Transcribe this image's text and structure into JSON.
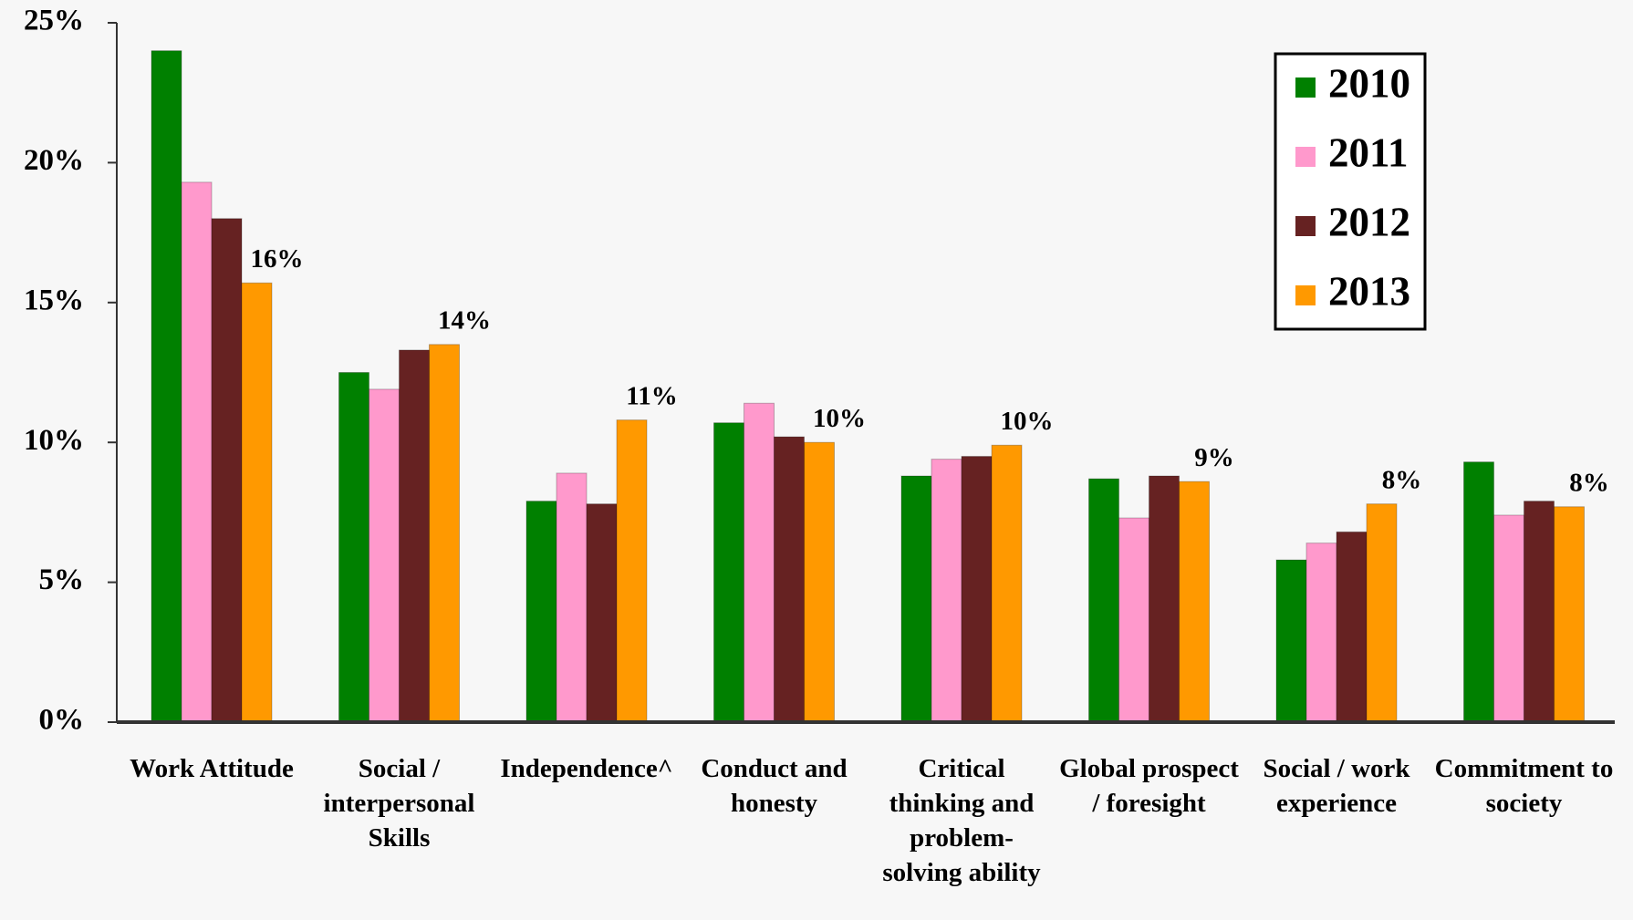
{
  "chart_data": {
    "type": "bar",
    "categories": [
      "Work Attitude",
      "Social / interpersonal Skills",
      "Independence^",
      "Conduct and honesty",
      "Critical thinking and problem-solving ability",
      "Global prospect / foresight",
      "Social / work experience",
      "Commitment to society"
    ],
    "series": [
      {
        "name": "2010",
        "color": "#008000",
        "values": [
          24.0,
          12.5,
          7.9,
          10.7,
          8.8,
          8.7,
          5.8,
          9.3
        ]
      },
      {
        "name": "2011",
        "color": "#ff99cc",
        "values": [
          19.3,
          11.9,
          8.9,
          11.4,
          9.4,
          7.3,
          6.4,
          7.4
        ]
      },
      {
        "name": "2012",
        "color": "#662222",
        "values": [
          18.0,
          13.3,
          7.8,
          10.2,
          9.5,
          8.8,
          6.8,
          7.9
        ]
      },
      {
        "name": "2013",
        "color": "#ff9900",
        "values": [
          15.7,
          13.5,
          10.8,
          10.0,
          9.9,
          8.6,
          7.8,
          7.7
        ],
        "value_labels": [
          "16%",
          "14%",
          "11%",
          "10%",
          "10%",
          "9%",
          "8%",
          "8%"
        ]
      }
    ],
    "ylim": [
      0,
      25
    ],
    "yticks": [
      {
        "value": 0,
        "label": "0%"
      },
      {
        "value": 5,
        "label": "5%"
      },
      {
        "value": 10,
        "label": "10%"
      },
      {
        "value": 15,
        "label": "15%"
      },
      {
        "value": 20,
        "label": "20%"
      },
      {
        "value": 25,
        "label": "25%"
      }
    ],
    "legend": "top-right"
  }
}
